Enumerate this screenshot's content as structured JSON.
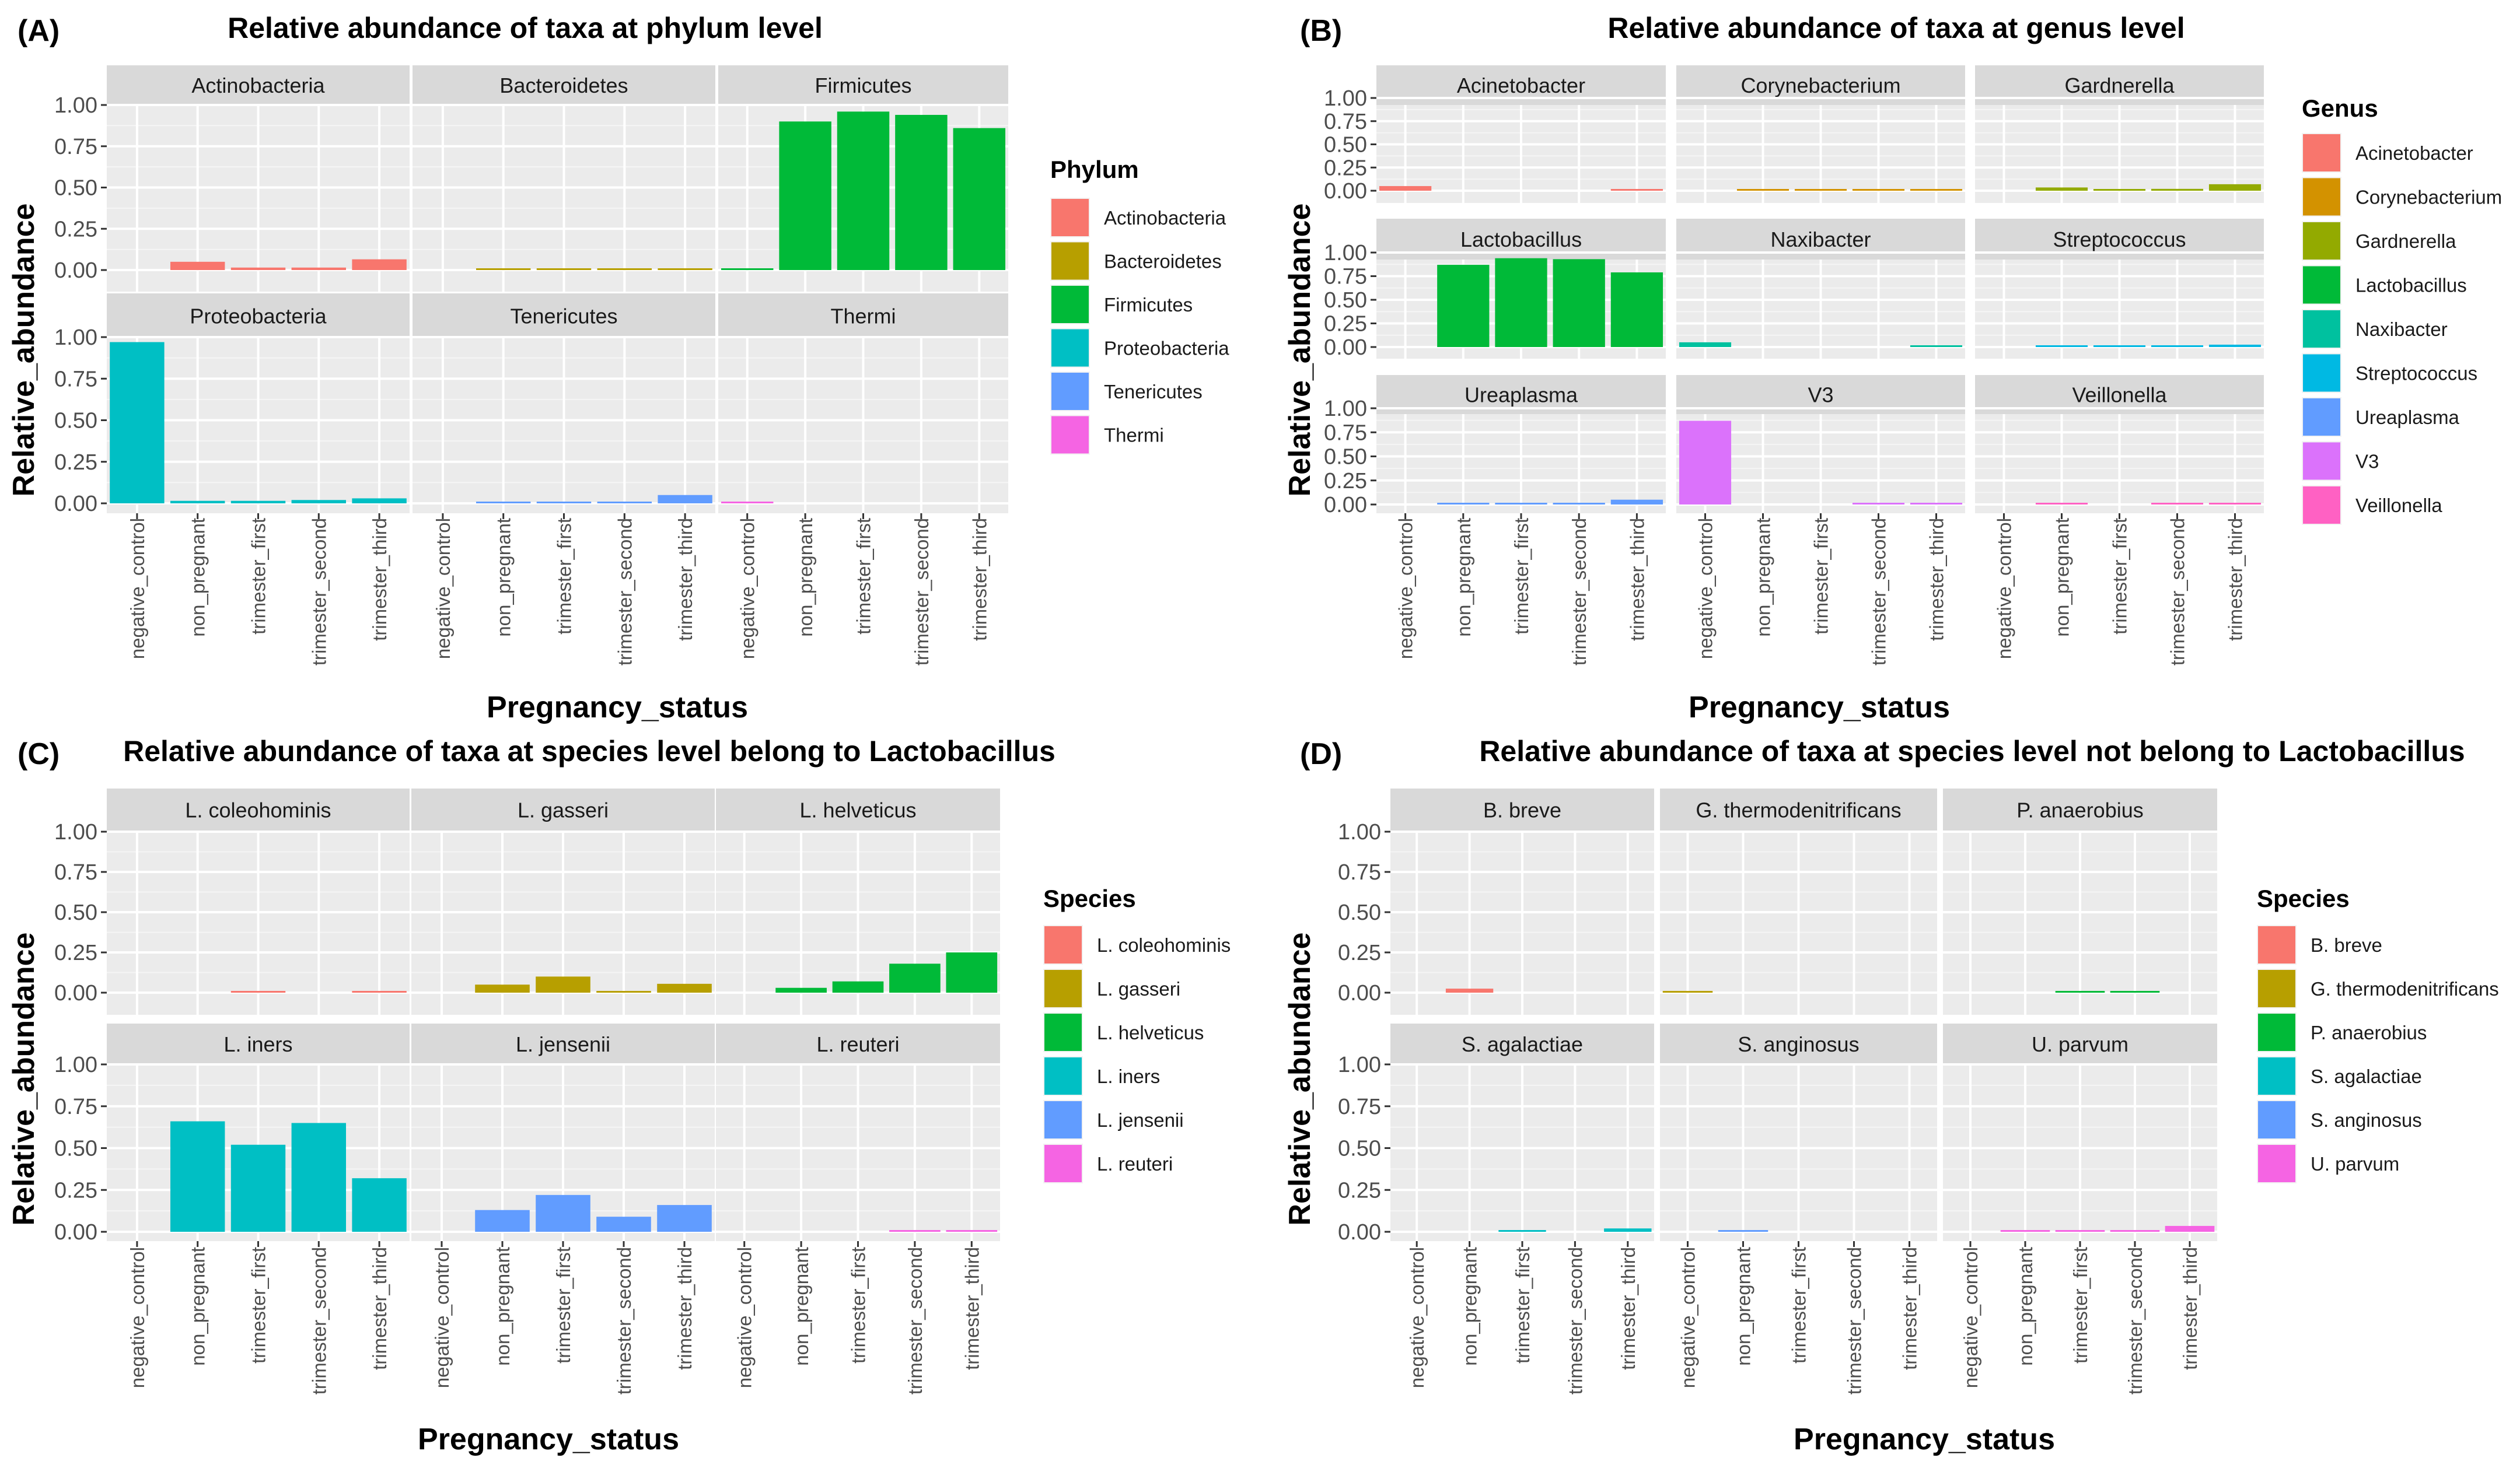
{
  "figure": {
    "x_label": "Pregnancy_status",
    "y_label": "Relative_abundance",
    "categories": [
      "negative_control",
      "non_pregnant",
      "trimester_first",
      "trimester_second",
      "trimester_third"
    ],
    "y_ticks": [
      "0.00",
      "0.25",
      "0.50",
      "0.75",
      "1.00"
    ]
  },
  "chart_data": [
    {
      "type": "bar",
      "panel_label": "(A)",
      "title": "Relative abundance of taxa at phylum level",
      "legend_title": "Phylum",
      "xlabel": "Pregnancy_status",
      "ylabel": "Relative_abundance",
      "ylim": [
        0,
        1.0
      ],
      "categories": [
        "negative_control",
        "non_pregnant",
        "trimester_first",
        "trimester_second",
        "trimester_third"
      ],
      "facets": [
        {
          "name": "Actinobacteria",
          "color": "#F8766D",
          "values": [
            0,
            0.05,
            0.015,
            0.015,
            0.065
          ]
        },
        {
          "name": "Bacteroidetes",
          "color": "#B79F00",
          "values": [
            0,
            0.008,
            0.002,
            0.002,
            0.008
          ]
        },
        {
          "name": "Firmicutes",
          "color": "#00BA38",
          "values": [
            0.01,
            0.9,
            0.96,
            0.94,
            0.86
          ]
        },
        {
          "name": "Proteobacteria",
          "color": "#00BFC4",
          "values": [
            0.97,
            0.015,
            0.015,
            0.02,
            0.03
          ]
        },
        {
          "name": "Tenericutes",
          "color": "#619CFF",
          "values": [
            0,
            0.01,
            0.004,
            0.01,
            0.05
          ]
        },
        {
          "name": "Thermi",
          "color": "#F564E3",
          "values": [
            0.01,
            0,
            0,
            0,
            0
          ]
        }
      ]
    },
    {
      "type": "bar",
      "panel_label": "(B)",
      "title": "Relative abundance of taxa at genus level",
      "legend_title": "Genus",
      "xlabel": "Pregnancy_status",
      "ylabel": "Relative_abundance",
      "ylim": [
        0,
        1.0
      ],
      "categories": [
        "negative_control",
        "non_pregnant",
        "trimester_first",
        "trimester_second",
        "trimester_third"
      ],
      "facets": [
        {
          "name": "Acinetobacter",
          "color": "#F8766D",
          "values": [
            0.05,
            0,
            0,
            0,
            0.005
          ]
        },
        {
          "name": "Corynebacterium",
          "color": "#D39200",
          "values": [
            0,
            0.002,
            0.01,
            0.003,
            0.01
          ]
        },
        {
          "name": "Gardnerella",
          "color": "#93AA00",
          "values": [
            0,
            0.035,
            0.008,
            0.02,
            0.07
          ]
        },
        {
          "name": "Lactobacillus",
          "color": "#00BA38",
          "values": [
            0,
            0.87,
            0.94,
            0.93,
            0.79
          ]
        },
        {
          "name": "Naxibacter",
          "color": "#00C19F",
          "values": [
            0.05,
            0,
            0,
            0,
            0.005
          ]
        },
        {
          "name": "Streptococcus",
          "color": "#00B9E3",
          "values": [
            0,
            0.005,
            0.01,
            0.005,
            0.025
          ]
        },
        {
          "name": "Ureaplasma",
          "color": "#619CFF",
          "values": [
            0,
            0.01,
            0.005,
            0.01,
            0.05
          ]
        },
        {
          "name": "V3",
          "color": "#DB72FB",
          "values": [
            0.87,
            0,
            0,
            0.005,
            0.01
          ]
        },
        {
          "name": "Veillonella",
          "color": "#FF61C3",
          "values": [
            0,
            0.01,
            0,
            0.005,
            0.005
          ]
        }
      ]
    },
    {
      "type": "bar",
      "panel_label": "(C)",
      "title": "Relative abundance of taxa at species level belong to Lactobacillus",
      "legend_title": "Species",
      "xlabel": "Pregnancy_status",
      "ylabel": "Relative_abundance",
      "ylim": [
        0,
        1.0
      ],
      "categories": [
        "negative_control",
        "non_pregnant",
        "trimester_first",
        "trimester_second",
        "trimester_third"
      ],
      "facets": [
        {
          "name": "L. coleohominis",
          "color": "#F8766D",
          "values": [
            0,
            0,
            0.005,
            0,
            0.005
          ]
        },
        {
          "name": "L. gasseri",
          "color": "#B79F00",
          "values": [
            0,
            0.05,
            0.1,
            0.005,
            0.055
          ]
        },
        {
          "name": "L. helveticus",
          "color": "#00BA38",
          "values": [
            0,
            0.03,
            0.07,
            0.18,
            0.25
          ]
        },
        {
          "name": "L. iners",
          "color": "#00BFC4",
          "values": [
            0,
            0.66,
            0.52,
            0.65,
            0.32
          ]
        },
        {
          "name": "L. jensenii",
          "color": "#619CFF",
          "values": [
            0,
            0.13,
            0.22,
            0.09,
            0.16
          ]
        },
        {
          "name": "L. reuteri",
          "color": "#F564E3",
          "values": [
            0,
            0,
            0,
            0.005,
            0.005
          ]
        }
      ]
    },
    {
      "type": "bar",
      "panel_label": "(D)",
      "title": "Relative abundance of taxa at species level not belong to Lactobacillus",
      "legend_title": "Species",
      "xlabel": "Pregnancy_status",
      "ylabel": "Relative_abundance",
      "ylim": [
        0,
        1.0
      ],
      "categories": [
        "negative_control",
        "non_pregnant",
        "trimester_first",
        "trimester_second",
        "trimester_third"
      ],
      "facets": [
        {
          "name": "B. breve",
          "color": "#F8766D",
          "values": [
            0,
            0.025,
            0,
            0,
            0
          ]
        },
        {
          "name": "G. thermodenitrificans",
          "color": "#B79F00",
          "values": [
            0.01,
            0,
            0,
            0,
            0
          ]
        },
        {
          "name": "P. anaerobius",
          "color": "#00BA38",
          "values": [
            0,
            0,
            0.007,
            0.007,
            0
          ]
        },
        {
          "name": "S. agalactiae",
          "color": "#00BFC4",
          "values": [
            0,
            0,
            0.008,
            0,
            0.02
          ]
        },
        {
          "name": "S. anginosus",
          "color": "#619CFF",
          "values": [
            0,
            0.005,
            0,
            0,
            0
          ]
        },
        {
          "name": "U. parvum",
          "color": "#F564E3",
          "values": [
            0,
            0.005,
            0.005,
            0.01,
            0.035
          ]
        }
      ]
    }
  ]
}
